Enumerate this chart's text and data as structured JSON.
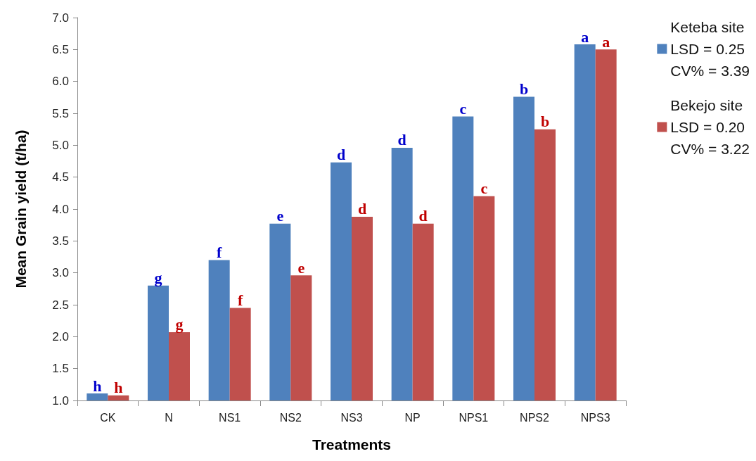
{
  "chart_data": {
    "type": "bar",
    "xlabel": "Treatments",
    "ylabel": "Mean Grain yield (t/ha)",
    "categories": [
      "CK",
      "N",
      "NS1",
      "NS2",
      "NS3",
      "NP",
      "NPS1",
      "NPS2",
      "NPS3"
    ],
    "series": [
      {
        "name": "Keteba site\nLSD = 0.25\nCV% = 3.39",
        "color": "#4f81bd",
        "values": [
          1.11,
          2.8,
          3.2,
          3.77,
          4.73,
          4.96,
          5.45,
          5.76,
          6.58
        ],
        "value_labels": [
          "h",
          "g",
          "f",
          "e",
          "d",
          "d",
          "c",
          "b",
          "a"
        ]
      },
      {
        "name": "Bekejo site\nLSD = 0.20\nCV% = 3.22",
        "color": "#c0504d",
        "values": [
          1.08,
          2.07,
          2.45,
          2.96,
          3.88,
          3.77,
          4.2,
          5.25,
          6.5
        ],
        "value_labels": [
          "h",
          "g",
          "f",
          "e",
          "d",
          "d",
          "c",
          "b",
          "a"
        ]
      }
    ],
    "ylim": [
      1.0,
      7.0
    ],
    "yticks": [
      {
        "value": 1,
        "label": "1.0"
      },
      {
        "value": 1.5,
        "label": "1.5"
      },
      {
        "value": 2,
        "label": "2.0"
      },
      {
        "value": 2.5,
        "label": "2.5"
      },
      {
        "value": 3,
        "label": "3.0"
      },
      {
        "value": 3.5,
        "label": "3.5"
      },
      {
        "value": 4,
        "label": "4.0"
      },
      {
        "value": 4.5,
        "label": "4.5"
      },
      {
        "value": 5,
        "label": "5.0"
      },
      {
        "value": 5.5,
        "label": "5.5"
      },
      {
        "value": 6,
        "label": "6.0"
      },
      {
        "value": 6.5,
        "label": "6.5"
      },
      {
        "value": 7,
        "label": "7.0"
      }
    ],
    "grid": false,
    "legend": "top right"
  }
}
